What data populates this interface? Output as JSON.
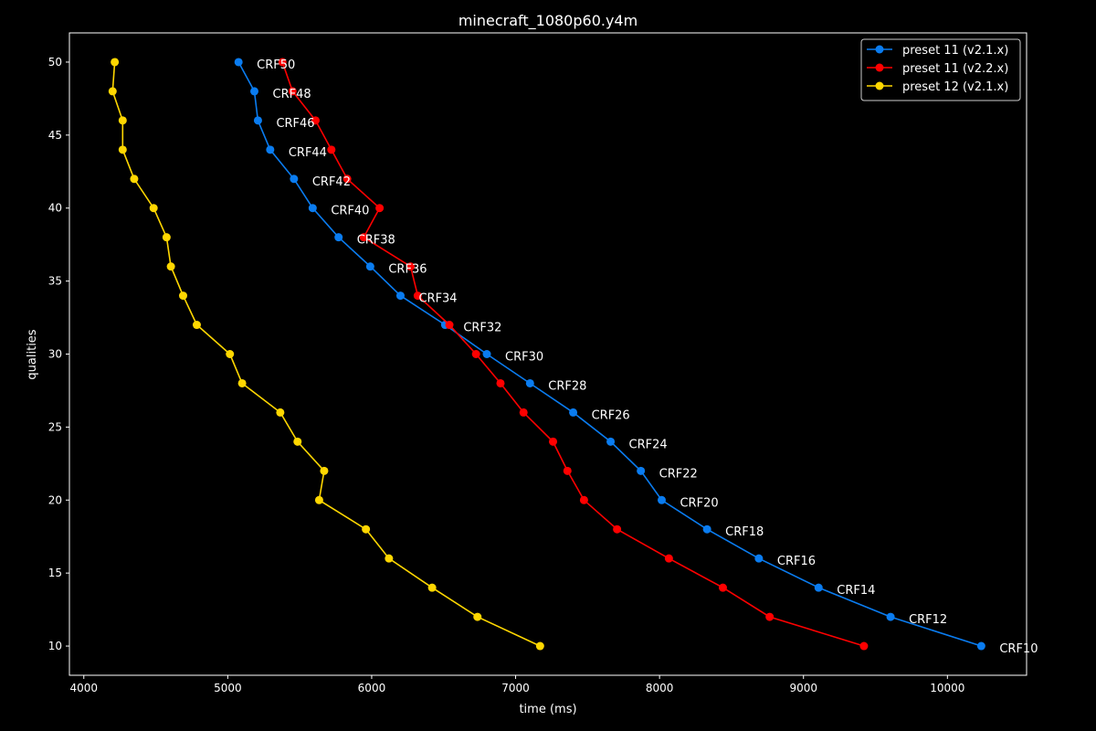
{
  "chart_data": {
    "type": "line",
    "title": "minecraft_1080p60.y4m",
    "xlabel": "time (ms)",
    "ylabel": "qualities",
    "xlim": [
      3900,
      10550
    ],
    "ylim": [
      8,
      52
    ],
    "xticks": [
      4000,
      5000,
      6000,
      7000,
      8000,
      9000,
      10000
    ],
    "yticks": [
      10,
      15,
      20,
      25,
      30,
      35,
      40,
      45,
      50
    ],
    "grid": false,
    "legend_position": "top-right",
    "background": "#000000",
    "foreground": "#ffffff",
    "y": [
      50,
      48,
      46,
      44,
      42,
      40,
      38,
      36,
      34,
      32,
      30,
      28,
      26,
      24,
      22,
      20,
      18,
      16,
      14,
      12,
      10
    ],
    "point_labels": [
      "CRF50",
      "CRF48",
      "CRF46",
      "CRF44",
      "CRF42",
      "CRF40",
      "CRF38",
      "CRF36",
      "CRF34",
      "CRF32",
      "CRF30",
      "CRF28",
      "CRF26",
      "CRF24",
      "CRF22",
      "CRF20",
      "CRF18",
      "CRF16",
      "CRF14",
      "CRF12",
      "CRF10"
    ],
    "series": [
      {
        "name": "preset 11 (v2.1.x)",
        "color": "#0a7cf0",
        "x": [
          5075,
          5185,
          5210,
          5295,
          5460,
          5590,
          5770,
          5990,
          6200,
          6510,
          6800,
          7100,
          7400,
          7660,
          7870,
          8015,
          8330,
          8690,
          9105,
          9605,
          10235
        ]
      },
      {
        "name": "preset 11 (v2.2.x)",
        "color": "#ff0000",
        "x": [
          5380,
          5450,
          5610,
          5720,
          5830,
          6055,
          5945,
          6270,
          6320,
          6540,
          6725,
          6895,
          7055,
          7260,
          7360,
          7475,
          7705,
          8065,
          8440,
          8765,
          9420
        ]
      },
      {
        "name": "preset 12 (v2.1.x)",
        "color": "#ffd700",
        "x": [
          4215,
          4200,
          4270,
          4270,
          4350,
          4485,
          4575,
          4605,
          4690,
          4785,
          5015,
          5100,
          5365,
          5485,
          5670,
          5635,
          5960,
          6120,
          6420,
          6735,
          7170
        ]
      }
    ]
  }
}
